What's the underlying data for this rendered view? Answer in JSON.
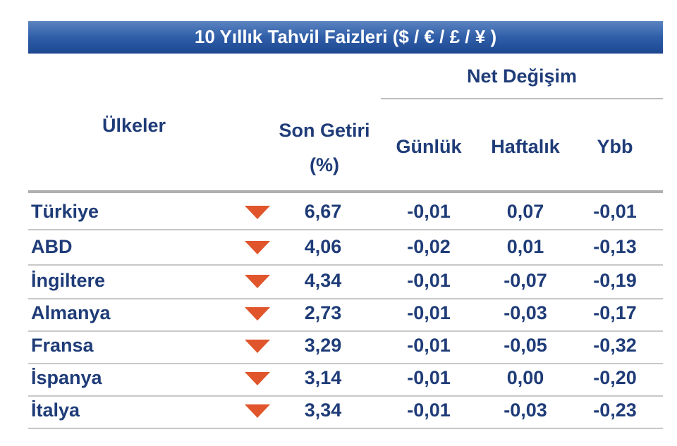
{
  "title": "10 Yıllık Tahvil Faizleri ($ / € / £ / ¥ )",
  "header": {
    "country": "Ülkeler",
    "yield": [
      "Son Getiri",
      "(%)"
    ],
    "group": "Net Değişim",
    "changes": [
      "Günlük",
      "Haftalık",
      "Ybb"
    ]
  },
  "table": {
    "rows": [
      [
        "Türkiye",
        "6,67",
        "-0,01",
        "0,07",
        "-0,01"
      ],
      [
        "ABD",
        "4,06",
        "-0,02",
        "0,01",
        "-0,13"
      ],
      [
        "İngiltere",
        "4,34",
        "-0,01",
        "-0,07",
        "-0,19"
      ],
      [
        "Almanya",
        "2,73",
        "-0,01",
        "-0,03",
        "-0,17"
      ],
      [
        "Fransa",
        "3,29",
        "-0,01",
        "-0,05",
        "-0,32"
      ],
      [
        "İspanya",
        "3,14",
        "-0,01",
        "0,00",
        "-0,20"
      ],
      [
        "İtalya",
        "3,34",
        "-0,01",
        "-0,03",
        "-0,23"
      ]
    ]
  }
}
